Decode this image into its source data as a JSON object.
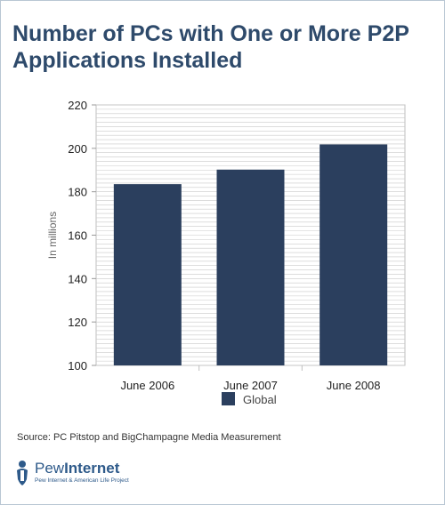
{
  "title": "Number of PCs with One or More P2P Applications Installed",
  "source": "Source: PC Pitstop and BigChampagne Media Measurement",
  "logo": {
    "name_part1": "Pew",
    "name_part2": "Internet",
    "tagline": "Pew Internet & American Life Project",
    "icon": "pew-person-icon"
  },
  "colors": {
    "bar": "#2b3f5e",
    "title": "#2e4a6b",
    "grid": "#c9c9c9"
  },
  "chart_data": {
    "type": "bar",
    "title": "Number of PCs with One or More P2P Applications Installed",
    "categories": [
      "June 2006",
      "June 2007",
      "June 2008"
    ],
    "series": [
      {
        "name": "Global",
        "values": [
          183.5,
          190.2,
          201.8
        ]
      }
    ],
    "ylabel": "In millions",
    "xlabel": "",
    "ylim": [
      100,
      220
    ],
    "yticks": [
      "100",
      "120",
      "140",
      "160",
      "180",
      "200",
      "220"
    ],
    "grid": true,
    "legend_position": "bottom"
  }
}
